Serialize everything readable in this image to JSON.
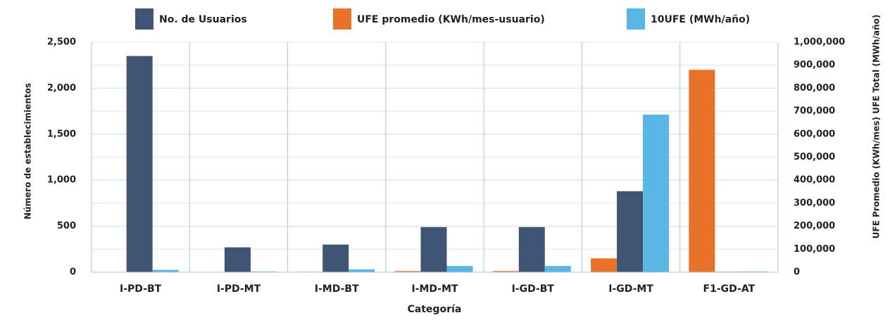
{
  "chart_data": {
    "type": "bar",
    "x_label": "Categoría",
    "y_label": "Número de establecimientos",
    "y2_label": "UFE Promedio (KWh/mes) UFE Total (MWh/año)",
    "categories": [
      "I-PD-BT",
      "I-PD-MT",
      "I-MD-BT",
      "I-MD-MT",
      "I-GD-BT",
      "I-GD-MT",
      "F1-GD-AT"
    ],
    "series": [
      {
        "name": "No. de Usuarios",
        "color": "#3f5573",
        "values": [
          2350,
          270,
          300,
          490,
          490,
          880,
          5
        ]
      },
      {
        "name": "UFE promedio (KWh/mes-usuario)",
        "color": "#e8722a",
        "axis": "y2",
        "values": [
          0,
          0,
          2000,
          5000,
          5000,
          60000,
          880000
        ]
      },
      {
        "name": "10UFE (MWh/año)",
        "color": "#5ab6e2",
        "axis": "y2",
        "values": [
          10000,
          3000,
          12000,
          27000,
          27000,
          685000,
          3000
        ]
      }
    ],
    "ylim": [
      0,
      2500
    ],
    "yticks": [
      0,
      500,
      {
        "value": 1000,
        "label": "1,000"
      },
      {
        "value": 1500,
        "label": "1,500"
      },
      {
        "value": 2000,
        "label": "2,000"
      },
      {
        "value": 2500,
        "label": "2,500"
      }
    ],
    "y2lim": [
      0,
      1000000
    ],
    "y2ticks": [
      0,
      {
        "value": 100000,
        "label": "100,000"
      },
      {
        "value": 200000,
        "label": "200,000"
      },
      {
        "value": 300000,
        "label": "300,000"
      },
      {
        "value": 400000,
        "label": "400,000"
      },
      {
        "value": 500000,
        "label": "500,000"
      },
      {
        "value": 600000,
        "label": "600,000"
      },
      {
        "value": 700000,
        "label": "700,000"
      },
      {
        "value": 800000,
        "label": "800,000"
      },
      {
        "value": 900000,
        "label": "900,000"
      },
      {
        "value": 1000000,
        "label": "1,000,000"
      }
    ],
    "grid": true
  }
}
